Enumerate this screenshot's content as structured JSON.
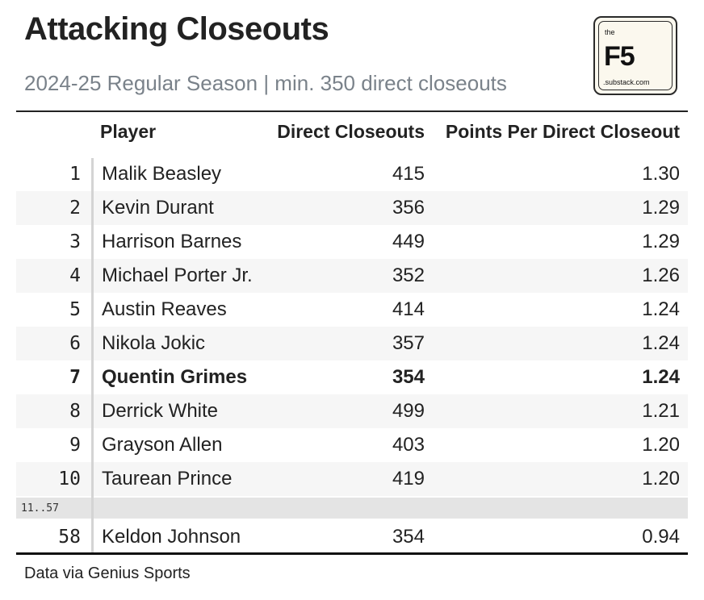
{
  "title": "Attacking Closeouts",
  "subtitle": "2024-25 Regular Season | min. 350 direct closeouts",
  "logo": {
    "the": "the",
    "mark": "F5",
    "sub": ".substack.com"
  },
  "source": "Data via Genius Sports",
  "chart_data": {
    "type": "table",
    "columns": [
      "",
      "Player",
      "Direct Closeouts",
      "Points Per Direct Closeout"
    ],
    "rows": [
      {
        "rank": "1",
        "player": "Malik Beasley",
        "direct_closeouts": "415",
        "ppdc": "1.30"
      },
      {
        "rank": "2",
        "player": "Kevin Durant",
        "direct_closeouts": "356",
        "ppdc": "1.29"
      },
      {
        "rank": "3",
        "player": "Harrison Barnes",
        "direct_closeouts": "449",
        "ppdc": "1.29"
      },
      {
        "rank": "4",
        "player": "Michael Porter Jr.",
        "direct_closeouts": "352",
        "ppdc": "1.26"
      },
      {
        "rank": "5",
        "player": "Austin Reaves",
        "direct_closeouts": "414",
        "ppdc": "1.24"
      },
      {
        "rank": "6",
        "player": "Nikola Jokic",
        "direct_closeouts": "357",
        "ppdc": "1.24"
      },
      {
        "rank": "7",
        "player": "Quentin Grimes",
        "direct_closeouts": "354",
        "ppdc": "1.24"
      },
      {
        "rank": "8",
        "player": "Derrick White",
        "direct_closeouts": "499",
        "ppdc": "1.21"
      },
      {
        "rank": "9",
        "player": "Grayson Allen",
        "direct_closeouts": "403",
        "ppdc": "1.20"
      },
      {
        "rank": "10",
        "player": "Taurean Prince",
        "direct_closeouts": "419",
        "ppdc": "1.20"
      }
    ],
    "gap_label": "11..57",
    "extra_row": {
      "rank": "58",
      "player": "Keldon Johnson",
      "direct_closeouts": "354",
      "ppdc": "0.94"
    }
  }
}
